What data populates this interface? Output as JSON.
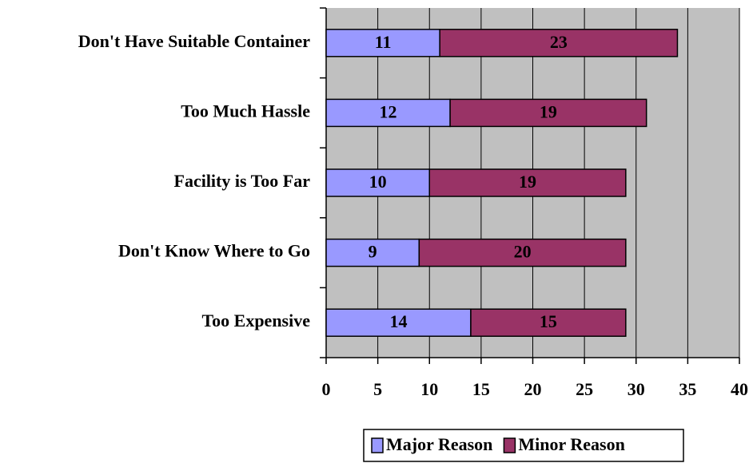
{
  "chart_data": {
    "type": "stacked_barh",
    "categories": [
      "Don't Have Suitable Container",
      "Too Much Hassle",
      "Facility is Too Far",
      "Don't Know Where to Go",
      "Too Expensive"
    ],
    "series": [
      {
        "name": "Major Reason",
        "color": "#9999ff",
        "values": [
          11,
          12,
          10,
          9,
          14
        ]
      },
      {
        "name": "Minor Reason",
        "color": "#993366",
        "values": [
          23,
          19,
          19,
          20,
          15
        ]
      }
    ],
    "xlim": [
      0,
      40
    ],
    "xticks": [
      0,
      5,
      10,
      15,
      20,
      25,
      30,
      35,
      40
    ],
    "grid": true,
    "legend": "bottom",
    "plot_background": "#c0c0c0"
  }
}
